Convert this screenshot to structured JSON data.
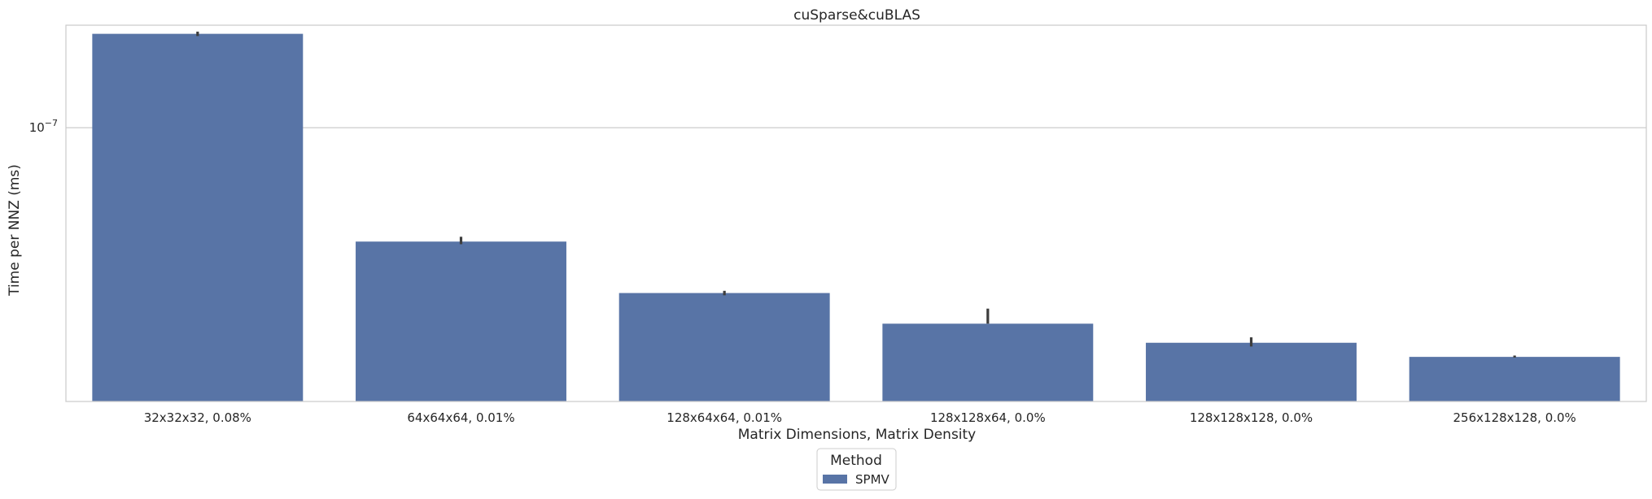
{
  "chart_data": {
    "type": "bar",
    "title": "cuSparse&cuBLAS",
    "xlabel": "Matrix Dimensions, Matrix Density",
    "ylabel": "Time per NNZ (ms)",
    "yscale": "log",
    "ylim": [
      1.8e-08,
      1.9e-07
    ],
    "yticks": [
      {
        "value": 1e-07,
        "label_base": "10",
        "label_exp": "−7"
      }
    ],
    "grid": "y",
    "categories": [
      "32x32x32, 0.08%",
      "64x64x64, 0.01%",
      "128x64x64, 0.01%",
      "128x128x64, 0.0%",
      "128x128x128, 0.0%",
      "256x128x128, 0.0%"
    ],
    "series": [
      {
        "name": "SPMV",
        "color": "#5874a6",
        "values": [
          1.8e-07,
          4.9e-08,
          3.55e-08,
          2.93e-08,
          2.6e-08,
          2.38e-08
        ],
        "error_low": [
          1.775e-07,
          4.82e-08,
          3.5e-08,
          2.93e-08,
          2.54e-08,
          2.37e-08
        ],
        "error_high": [
          1.825e-07,
          5.05e-08,
          3.6e-08,
          3.22e-08,
          2.69e-08,
          2.4e-08
        ]
      }
    ],
    "legend": {
      "title": "Method",
      "placement": "bottom-center"
    }
  }
}
